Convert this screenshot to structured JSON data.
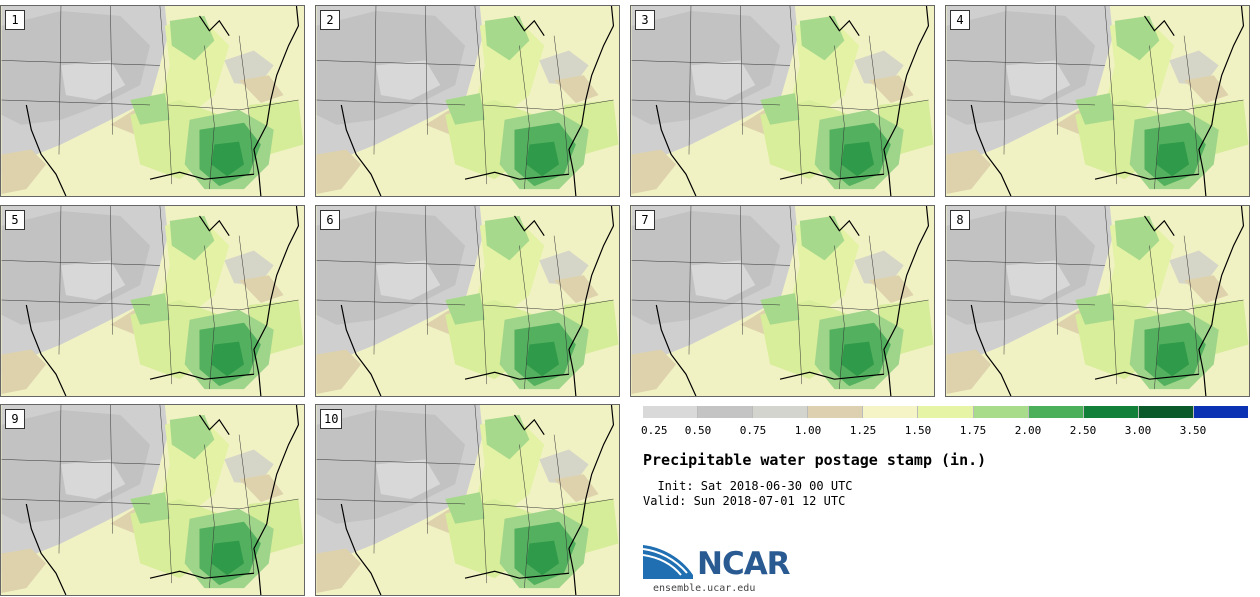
{
  "panels": [
    {
      "label": "1"
    },
    {
      "label": "2"
    },
    {
      "label": "3"
    },
    {
      "label": "4"
    },
    {
      "label": "5"
    },
    {
      "label": "6"
    },
    {
      "label": "7"
    },
    {
      "label": "8"
    },
    {
      "label": "9"
    },
    {
      "label": "10"
    }
  ],
  "colorbar": {
    "colors": [
      "#d9d9d9",
      "#c4c4c4",
      "#d4d4cf",
      "#dcd0b0",
      "#f4f4c6",
      "#e6f4a6",
      "#a8dc8a",
      "#4caf5a",
      "#13803a",
      "#0a5a2a",
      "#0a32b2"
    ],
    "ticks": [
      "0.25",
      "0.50",
      "0.75",
      "1.00",
      "1.25",
      "1.50",
      "1.75",
      "2.00",
      "2.50",
      "3.00",
      "3.50"
    ]
  },
  "title": "Precipitable water postage stamp (in.)",
  "init_line": "  Init: Sat 2018-06-30 00 UTC",
  "valid_line": "Valid: Sun 2018-07-01 12 UTC",
  "logo": {
    "name": "NCAR",
    "url": "ensemble.ucar.edu"
  }
}
